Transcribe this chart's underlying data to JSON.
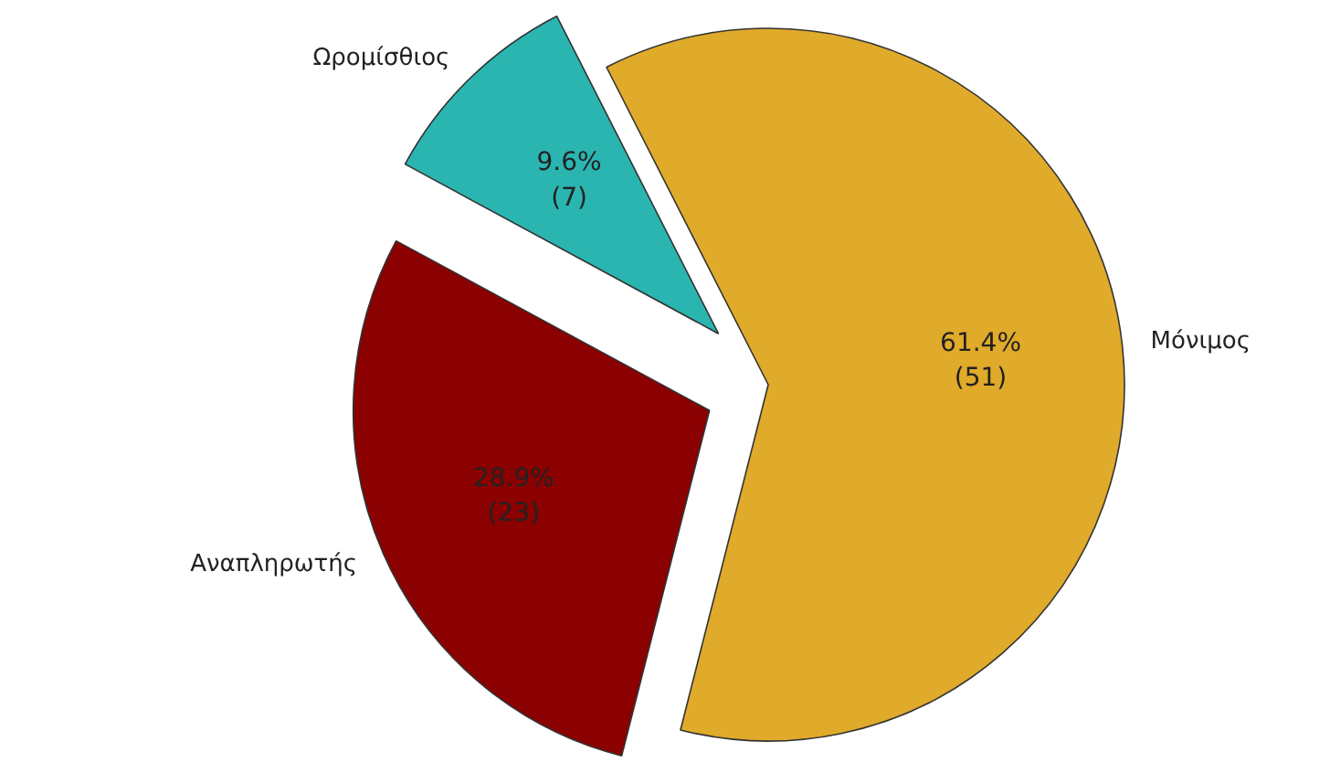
{
  "chart_data": {
    "type": "pie",
    "categories": [
      "Ωρομίσθιος",
      "Αναπληρωτής",
      "Μόνιμος"
    ],
    "values": [
      9.6,
      28.9,
      61.4
    ],
    "value_labels": [
      "9.6%\n(7)",
      "28.9%\n(23)",
      "61.4%\n(51)"
    ],
    "colors": [
      "#2ab5b0",
      "#8b0000",
      "#e0aa2a"
    ]
  }
}
